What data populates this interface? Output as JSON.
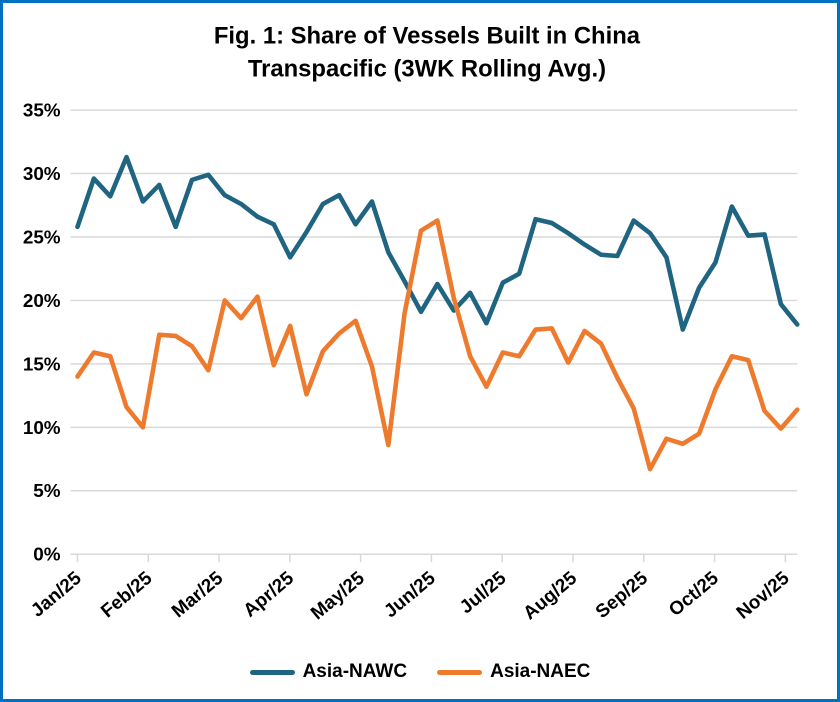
{
  "figure": {
    "title_line1": "Fig. 1: Share of Vessels Built in China",
    "title_line2": "Transpacific (3WK Rolling Avg.)"
  },
  "colors": {
    "border": "#0070C0",
    "gridline": "#D9D9D9",
    "tick": "#D9D9D9",
    "text": "#000000",
    "nawc": "#1F6480",
    "naec": "#EE7A2D"
  },
  "legend": {
    "items": [
      {
        "label": "Asia-NAWC",
        "color": "#1F6480"
      },
      {
        "label": "Asia-NAEC",
        "color": "#EE7A2D"
      }
    ]
  },
  "chart_data": {
    "type": "line",
    "title": "Fig. 1: Share of Vessels Built in China Transpacific (3WK Rolling Avg.)",
    "x_axis": {
      "tick_labels": [
        "Jan/25",
        "Feb/25",
        "Mar/25",
        "Apr/25",
        "May/25",
        "Jun/25",
        "Jul/25",
        "Aug/25",
        "Sep/25",
        "Oct/25",
        "Nov/25"
      ],
      "unit": "weekly points (3-week rolling average), ~4.33 points per month tick"
    },
    "y_axis": {
      "tick_labels": [
        "0%",
        "5%",
        "10%",
        "15%",
        "20%",
        "25%",
        "30%",
        "35%"
      ],
      "min": 0,
      "max": 35,
      "step": 5,
      "unit": "percent"
    },
    "grid": true,
    "legend_position": "bottom",
    "series": [
      {
        "name": "Asia-NAWC",
        "color": "#1F6480",
        "values": [
          25.8,
          29.6,
          28.2,
          31.3,
          27.8,
          29.1,
          25.8,
          29.5,
          29.9,
          28.3,
          27.6,
          26.6,
          26.0,
          23.4,
          25.4,
          27.6,
          28.3,
          26.0,
          27.8,
          23.8,
          21.5,
          19.1,
          21.3,
          19.2,
          20.6,
          18.2,
          21.4,
          22.1,
          26.4,
          26.1,
          25.3,
          24.4,
          23.6,
          23.5,
          26.3,
          25.3,
          23.4,
          17.7,
          21.0,
          23.0,
          27.4,
          25.1,
          25.2,
          19.7,
          18.1
        ]
      },
      {
        "name": "Asia-NAEC",
        "color": "#EE7A2D",
        "values": [
          14.0,
          15.9,
          15.6,
          11.6,
          10.0,
          17.3,
          17.2,
          16.4,
          14.5,
          20.0,
          18.6,
          20.3,
          14.9,
          18.0,
          12.6,
          16.0,
          17.4,
          18.4,
          14.8,
          8.6,
          19.0,
          25.5,
          26.3,
          20.2,
          15.6,
          13.2,
          15.9,
          15.6,
          17.7,
          17.8,
          15.1,
          17.6,
          16.6,
          13.9,
          11.5,
          6.7,
          9.1,
          8.7,
          9.5,
          13.0,
          15.6,
          15.3,
          11.3,
          9.9,
          11.4
        ]
      }
    ]
  }
}
